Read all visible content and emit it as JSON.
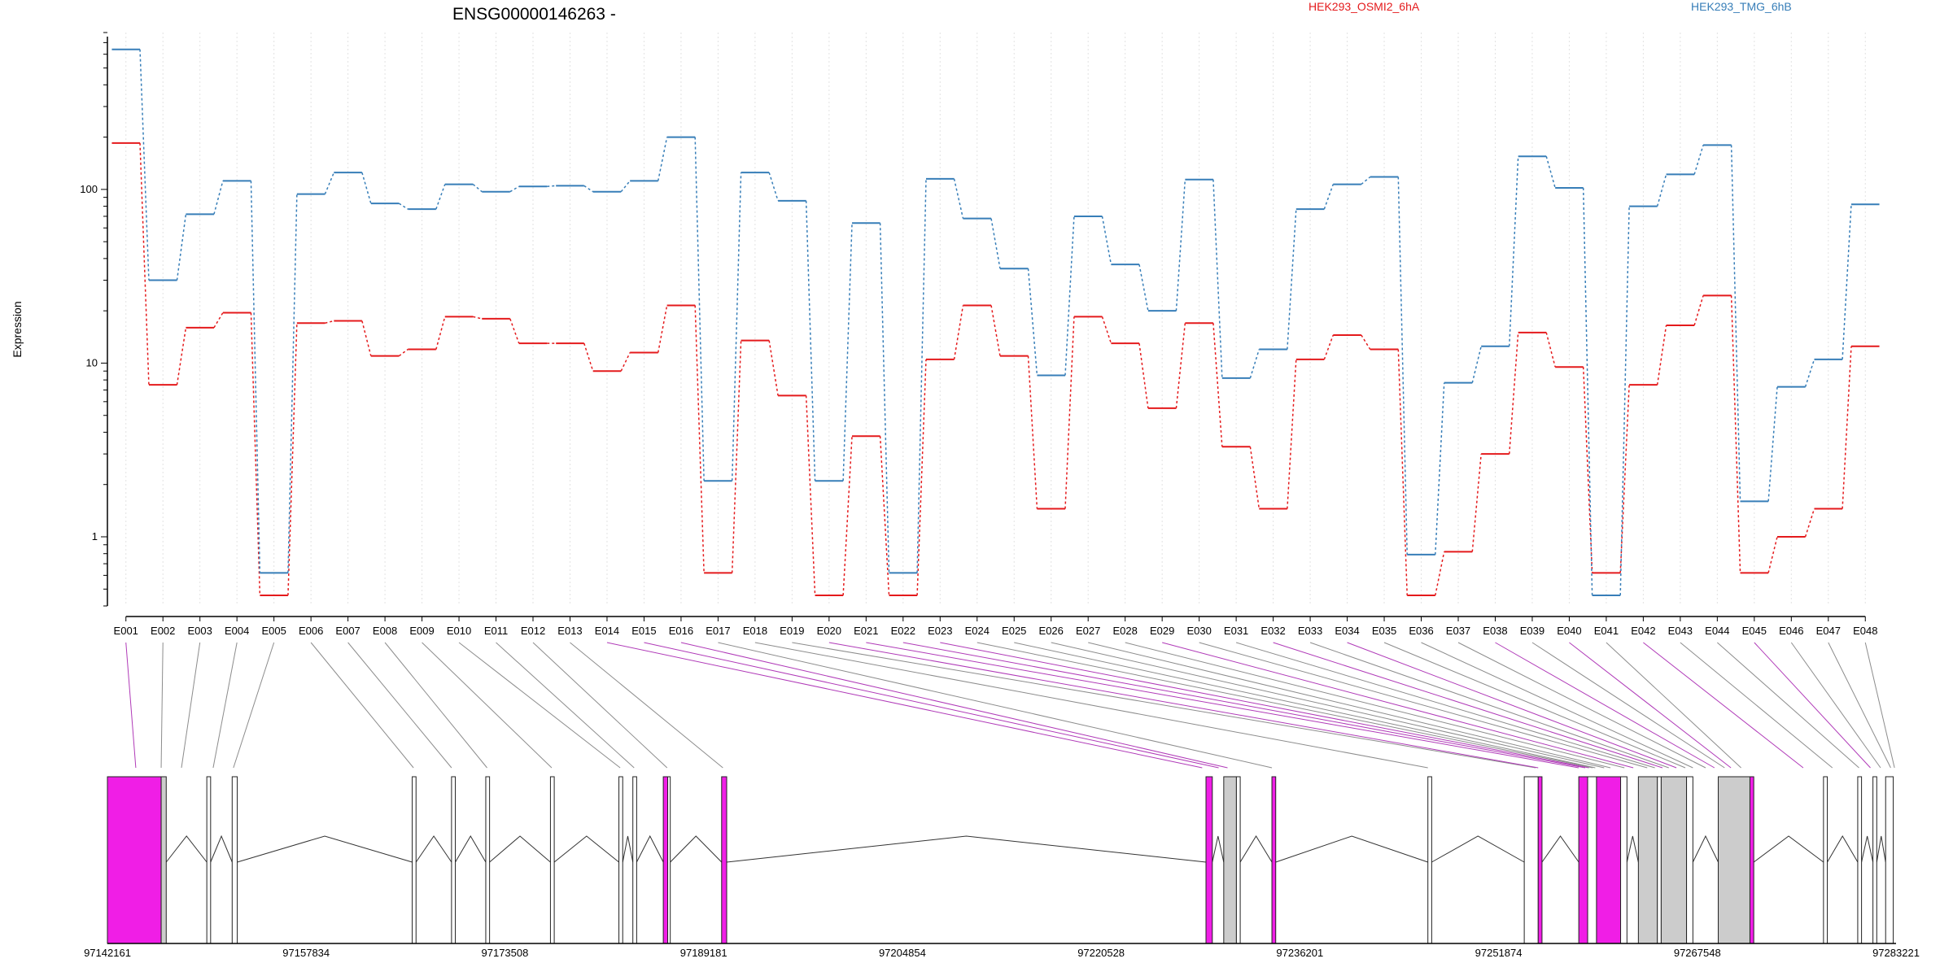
{
  "chart_data": {
    "type": "line",
    "title": "ENSG00000146263 -",
    "ylabel": "Expression",
    "yscale": "log",
    "ylim": [
      0.4,
      800
    ],
    "yticks": [
      1,
      10,
      100
    ],
    "grid": "vertical dotted per exon",
    "legend_placement": "top-right",
    "categories": [
      "E001",
      "E002",
      "E003",
      "E004",
      "E005",
      "E006",
      "E007",
      "E008",
      "E009",
      "E010",
      "E011",
      "E012",
      "E013",
      "E014",
      "E015",
      "E016",
      "E017",
      "E018",
      "E019",
      "E020",
      "E021",
      "E022",
      "E023",
      "E024",
      "E025",
      "E026",
      "E027",
      "E028",
      "E029",
      "E030",
      "E031",
      "E032",
      "E033",
      "E034",
      "E035",
      "E036",
      "E037",
      "E038",
      "E039",
      "E040",
      "E041",
      "E042",
      "E043",
      "E044",
      "E045",
      "E046",
      "E047",
      "E048"
    ],
    "series": [
      {
        "name": "HEK293_OSMI2_6hA",
        "color": "#e41a1c",
        "values": [
          185,
          7.5,
          16,
          19.5,
          0.46,
          17,
          17.5,
          11,
          12,
          18.5,
          18,
          13,
          13,
          9,
          11.5,
          21.5,
          0.62,
          13.5,
          6.5,
          0.46,
          3.8,
          0.46,
          10.5,
          21.5,
          11,
          1.45,
          18.5,
          13,
          5.5,
          17,
          3.3,
          1.45,
          10.5,
          14.5,
          12,
          0.46,
          0.82,
          3,
          15,
          9.5,
          0.62,
          7.5,
          16.5,
          24.5,
          0.62,
          1,
          1.45,
          12.5
        ]
      },
      {
        "name": "HEK293_TMG_6hB",
        "color": "#377eb8",
        "values": [
          640,
          30,
          72,
          112,
          0.62,
          94,
          125,
          83,
          77,
          107,
          97,
          104,
          105,
          97,
          112,
          200,
          2.1,
          125,
          86,
          2.1,
          64,
          0.62,
          115,
          68,
          35,
          8.5,
          70,
          37,
          20,
          114,
          8.2,
          12,
          77,
          107,
          118,
          0.79,
          7.7,
          12.5,
          155,
          102,
          0.46,
          80,
          122,
          180,
          1.6,
          7.3,
          10.5,
          82
        ]
      }
    ],
    "gene_track": {
      "coord_labels": [
        "97142161",
        "97157834",
        "97173508",
        "97189181",
        "97204854",
        "97220528",
        "97236201",
        "97251874",
        "97267548",
        "97283221"
      ],
      "range": [
        97142161,
        97283221
      ],
      "exon_regions": [
        [
          97142161,
          97146400,
          "magenta"
        ],
        [
          97146400,
          97146800,
          "gray"
        ],
        [
          97150000,
          97150300,
          "white"
        ],
        [
          97152000,
          97152400,
          "white"
        ],
        [
          97166200,
          97166500,
          "white"
        ],
        [
          97169300,
          97169600,
          "white"
        ],
        [
          97172000,
          97172300,
          "white"
        ],
        [
          97177100,
          97177400,
          "white"
        ],
        [
          97182500,
          97182800,
          "white"
        ],
        [
          97183600,
          97183900,
          "white"
        ],
        [
          97186000,
          97186350,
          "magenta"
        ],
        [
          97186350,
          97186550,
          "white"
        ],
        [
          97190600,
          97191000,
          "magenta"
        ],
        [
          97228800,
          97229300,
          "magenta"
        ],
        [
          97230200,
          97231200,
          "gray"
        ],
        [
          97231200,
          97231500,
          "white"
        ],
        [
          97234000,
          97234300,
          "magenta"
        ],
        [
          97246300,
          97246600,
          "white"
        ],
        [
          97253900,
          97255000,
          "white"
        ],
        [
          97255000,
          97255300,
          "magenta"
        ],
        [
          97258200,
          97258900,
          "magenta"
        ],
        [
          97258900,
          97259600,
          "white"
        ],
        [
          97259600,
          97261500,
          "magenta"
        ],
        [
          97261500,
          97262000,
          "white"
        ],
        [
          97262900,
          97264400,
          "gray"
        ],
        [
          97264400,
          97264700,
          "white"
        ],
        [
          97264700,
          97266700,
          "gray"
        ],
        [
          97266700,
          97267200,
          "white"
        ],
        [
          97269200,
          97271700,
          "gray"
        ],
        [
          97271700,
          97272000,
          "magenta"
        ],
        [
          97277500,
          97277800,
          "white"
        ],
        [
          97280200,
          97280500,
          "white"
        ],
        [
          97281400,
          97281700,
          "white"
        ],
        [
          97282400,
          97283000,
          "white"
        ]
      ],
      "exon_map_targets": [
        97144400,
        97146400,
        97148000,
        97150500,
        97152100,
        97166300,
        97169300,
        97172100,
        97177200,
        97182600,
        97183700,
        97186300,
        97190700,
        97228500,
        97229800,
        97230500,
        97234000,
        97246300,
        97254800,
        97255000,
        97258200,
        97258700,
        97259000,
        97259300,
        97259500,
        97260200,
        97260700,
        97261800,
        97262500,
        97263600,
        97264200,
        97264800,
        97265300,
        97265900,
        97266600,
        97267200,
        97268200,
        97268900,
        97269700,
        97270200,
        97271000,
        97275900,
        97278200,
        97280300,
        97281200,
        97282000,
        97282800,
        97283100
      ],
      "highlighted_exons": [
        "E001",
        "E014",
        "E015",
        "E016",
        "E020",
        "E021",
        "E022",
        "E023",
        "E029",
        "E032",
        "E034",
        "E038",
        "E040",
        "E042",
        "E045"
      ]
    }
  }
}
